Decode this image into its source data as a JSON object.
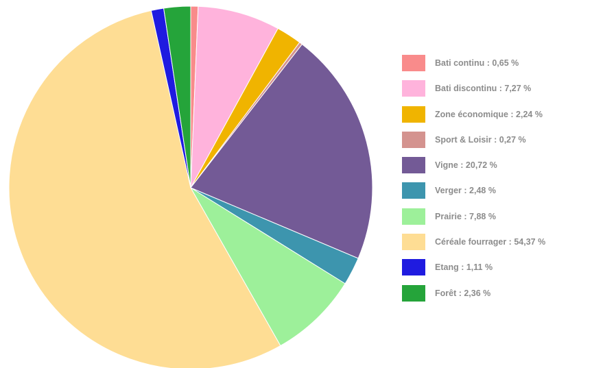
{
  "chart_data": {
    "type": "pie",
    "title": "",
    "legend_position": "right",
    "slices": [
      {
        "label": "Bati continu : 0,65 %",
        "value": 0.65,
        "color": "#f98b8b"
      },
      {
        "label": "Bati discontinu : 7,27 %",
        "value": 7.27,
        "color": "#ffb3dc"
      },
      {
        "label": "Zone économique : 2,24 %",
        "value": 2.24,
        "color": "#f0b400"
      },
      {
        "label": "Sport & Loisir : 0,27 %",
        "value": 0.27,
        "color": "#d4938f"
      },
      {
        "label": "Vigne : 20,72 %",
        "value": 20.72,
        "color": "#735a96"
      },
      {
        "label": "Verger : 2,48 %",
        "value": 2.48,
        "color": "#3d95ae"
      },
      {
        "label": "Prairie : 7,88 %",
        "value": 7.88,
        "color": "#9df09a"
      },
      {
        "label": "Céréale fourrager : 54,37 %",
        "value": 54.37,
        "color": "#fedd94"
      },
      {
        "label": "Etang : 1,11 %",
        "value": 1.11,
        "color": "#1f1be0"
      },
      {
        "label": "Forêt : 2,36 %",
        "value": 2.36,
        "color": "#25a43a"
      }
    ]
  }
}
